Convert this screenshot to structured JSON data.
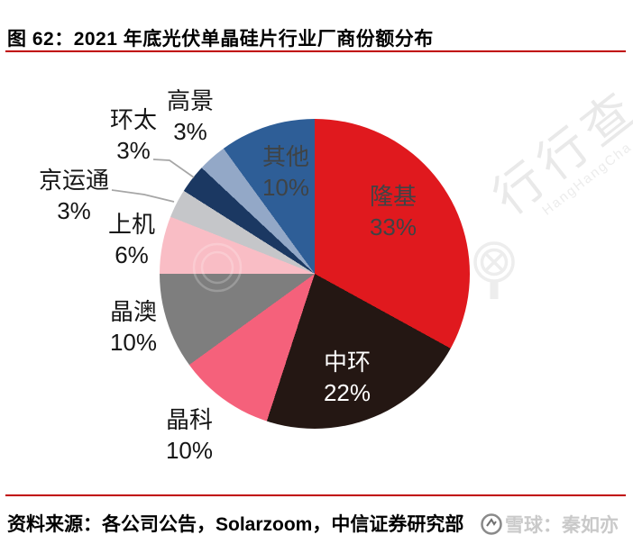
{
  "title": "图 62：2021 年底光伏单晶硅片行业厂商份额分布",
  "footer": {
    "source_text": "资料来源：各公司公告，Solarzoom，中信证券研究部"
  },
  "watermark": {
    "brand_cn": "行行查",
    "brand_en": "HangHangCha",
    "bottom_right": "雪球：秦如亦"
  },
  "colors": {
    "rule_red": "#c00000",
    "leader_line": "#a6a6a6",
    "inside_label_dark": "#3f4345",
    "inside_label_white": "#ffffff",
    "outside_label": "#151515",
    "watermark_gray": "#e9e9e9"
  },
  "chart_data": {
    "type": "pie",
    "title": "2021 年底光伏单晶硅片行业厂商份额分布",
    "unit": "%",
    "start_angle_deg": 0,
    "direction": "clockwise",
    "legend_position": "none",
    "slices": [
      {
        "label": "隆基",
        "value": 33,
        "color": "#e0191e",
        "label_style": "inside-dark"
      },
      {
        "label": "中环",
        "value": 22,
        "color": "#241713",
        "label_style": "inside-white"
      },
      {
        "label": "晶科",
        "value": 10,
        "color": "#f5617b",
        "label_style": "outside"
      },
      {
        "label": "晶澳",
        "value": 10,
        "color": "#7e7e7e",
        "label_style": "outside"
      },
      {
        "label": "上机",
        "value": 6,
        "color": "#f9bdc5",
        "label_style": "outside"
      },
      {
        "label": "京运通",
        "value": 3,
        "color": "#c5c6c9",
        "label_style": "outside"
      },
      {
        "label": "环太",
        "value": 3,
        "color": "#1b3862",
        "label_style": "outside"
      },
      {
        "label": "高景",
        "value": 3,
        "color": "#93a8c7",
        "label_style": "outside"
      },
      {
        "label": "其他",
        "value": 10,
        "color": "#2e5e97",
        "label_style": "inside-dark"
      }
    ]
  }
}
